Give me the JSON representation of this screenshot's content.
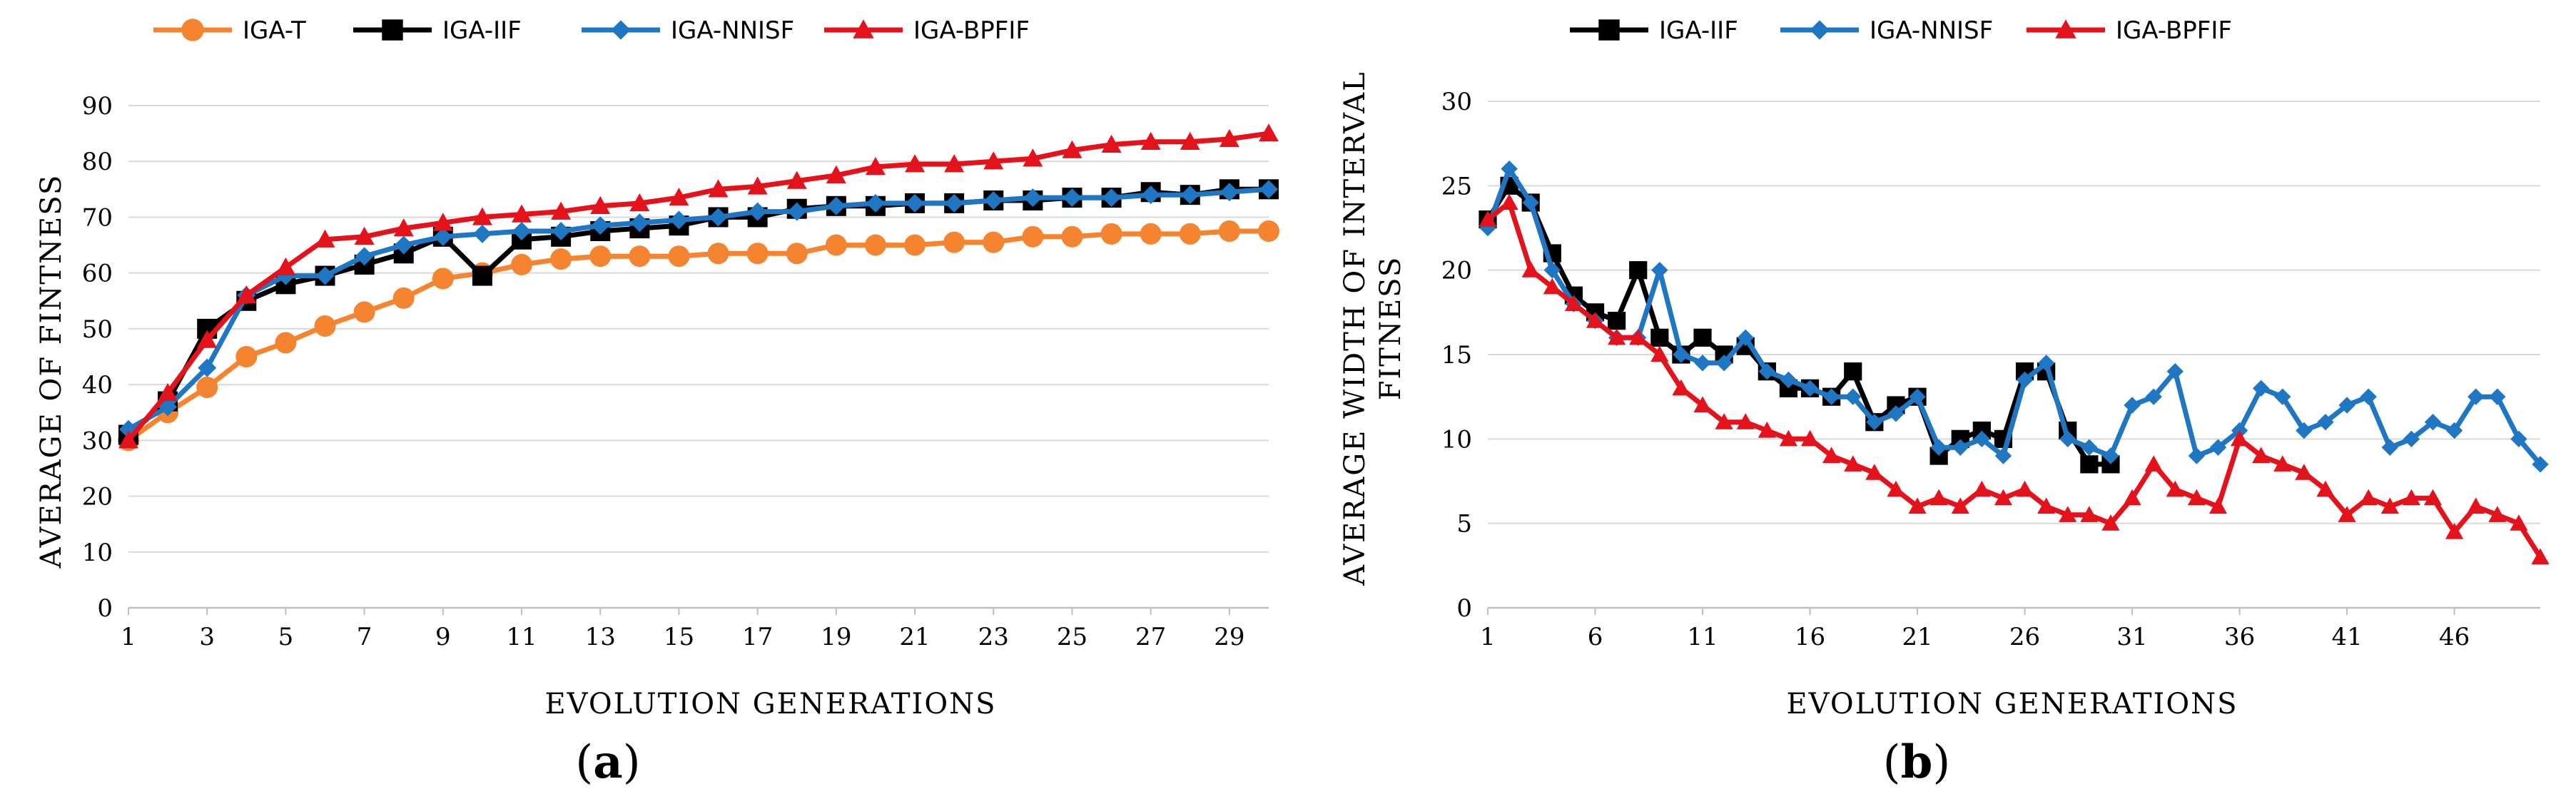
{
  "chart_data": [
    {
      "type": "line",
      "panel_label": "a",
      "xlabel": "EVOLUTION GENERATIONS",
      "ylabel": "AVERAGE OF FINTNESS",
      "ylim": [
        0,
        90
      ],
      "yticks": [
        "0",
        "10",
        "20",
        "30",
        "40",
        "50",
        "60",
        "70",
        "80",
        "90"
      ],
      "xlim": [
        1,
        30
      ],
      "xticks": [
        "1",
        "3",
        "5",
        "7",
        "9",
        "11",
        "13",
        "15",
        "17",
        "19",
        "21",
        "23",
        "25",
        "27",
        "29"
      ],
      "legend_position": "top",
      "series": [
        {
          "name": "IGA-T",
          "color": "#f4842f",
          "marker": "circle",
          "x": [
            1,
            2,
            3,
            4,
            5,
            6,
            7,
            8,
            9,
            10,
            11,
            12,
            13,
            14,
            15,
            16,
            17,
            18,
            19,
            20,
            21,
            22,
            23,
            24,
            25,
            26,
            27,
            28,
            29,
            30
          ],
          "values": [
            30,
            35,
            39.5,
            45,
            47.5,
            50.5,
            53,
            55.5,
            59,
            60,
            61.5,
            62.5,
            63,
            63,
            63,
            63.5,
            63.5,
            63.5,
            65,
            65,
            65,
            65.5,
            65.5,
            66.5,
            66.5,
            67,
            67,
            67,
            67.5,
            67.5
          ]
        },
        {
          "name": "IGA-IIF",
          "color": "#000000",
          "marker": "square",
          "x": [
            1,
            2,
            3,
            4,
            5,
            6,
            7,
            8,
            9,
            10,
            11,
            12,
            13,
            14,
            15,
            16,
            17,
            18,
            19,
            20,
            21,
            22,
            23,
            24,
            25,
            26,
            27,
            28,
            29,
            30
          ],
          "values": [
            31,
            37,
            50,
            55,
            58,
            59.5,
            61.5,
            63.5,
            66.5,
            59.5,
            66,
            66.5,
            67.5,
            68,
            68.5,
            70,
            70,
            71.5,
            72,
            72,
            72.5,
            72.5,
            73,
            73,
            73.5,
            73.5,
            74.5,
            74,
            75,
            75
          ]
        },
        {
          "name": "IGA-NNISF",
          "color": "#1f77c4",
          "marker": "diamond",
          "x": [
            1,
            2,
            3,
            4,
            5,
            6,
            7,
            8,
            9,
            10,
            11,
            12,
            13,
            14,
            15,
            16,
            17,
            18,
            19,
            20,
            21,
            22,
            23,
            24,
            25,
            26,
            27,
            28,
            29,
            30
          ],
          "values": [
            32,
            36,
            43,
            56,
            59.5,
            59.5,
            63,
            65,
            66.5,
            67,
            67.5,
            67.5,
            68.5,
            69,
            69.5,
            70,
            71,
            71,
            72,
            72.5,
            72.5,
            72.5,
            73,
            73.5,
            73.5,
            73.5,
            74,
            74,
            74.5,
            75
          ]
        },
        {
          "name": "IGA-BPFIF",
          "color": "#e3121b",
          "marker": "triangle",
          "x": [
            1,
            2,
            3,
            4,
            5,
            6,
            7,
            8,
            9,
            10,
            11,
            12,
            13,
            14,
            15,
            16,
            17,
            18,
            19,
            20,
            21,
            22,
            23,
            24,
            25,
            26,
            27,
            28,
            29,
            30
          ],
          "values": [
            30,
            38.5,
            48,
            56,
            61,
            66,
            66.5,
            68,
            69,
            70,
            70.5,
            71,
            72,
            72.5,
            73.5,
            75,
            75.5,
            76.5,
            77.5,
            79,
            79.5,
            79.5,
            80,
            80.5,
            82,
            83,
            83.5,
            83.5,
            84,
            85
          ]
        }
      ]
    },
    {
      "type": "line",
      "panel_label": "b",
      "xlabel": "EVOLUTION GENERATIONS",
      "ylabel_line1": "AVERAGE WIDTH OF INTERVAL",
      "ylabel_line2": "FITNESS",
      "ylim": [
        0,
        30
      ],
      "yticks": [
        "0",
        "5",
        "10",
        "15",
        "20",
        "25",
        "30"
      ],
      "xlim": [
        1,
        50
      ],
      "xticks": [
        "1",
        "6",
        "11",
        "16",
        "21",
        "26",
        "31",
        "36",
        "41",
        "46"
      ],
      "legend_position": "top",
      "series": [
        {
          "name": "IGA-IIF",
          "color": "#000000",
          "marker": "square",
          "x": [
            1,
            2,
            3,
            4,
            5,
            6,
            7,
            8,
            9,
            10,
            11,
            12,
            13,
            14,
            15,
            16,
            17,
            18,
            19,
            20,
            21,
            22,
            23,
            24,
            25,
            26,
            27,
            28,
            29,
            30
          ],
          "values": [
            23,
            25,
            24,
            21,
            18.5,
            17.5,
            17,
            20,
            16,
            15,
            16,
            15,
            15.5,
            14,
            13,
            13,
            12.5,
            14,
            11,
            12,
            12.5,
            9,
            10,
            10.5,
            10,
            14,
            14,
            10.5,
            8.5,
            8.5
          ]
        },
        {
          "name": "IGA-NNISF",
          "color": "#1f77c4",
          "marker": "diamond",
          "x": [
            1,
            2,
            3,
            4,
            5,
            6,
            7,
            8,
            9,
            10,
            11,
            12,
            13,
            14,
            15,
            16,
            17,
            18,
            19,
            20,
            21,
            22,
            23,
            24,
            25,
            26,
            27,
            28,
            29,
            30,
            31,
            32,
            33,
            34,
            35,
            36,
            37,
            38,
            39,
            40,
            41,
            42,
            43,
            44,
            45,
            46,
            47,
            48,
            49,
            50
          ],
          "values": [
            22.5,
            26,
            24,
            20,
            18,
            17,
            16,
            16,
            20,
            15,
            14.5,
            14.5,
            16,
            14,
            13.5,
            13,
            12.5,
            12.5,
            11,
            11.5,
            12.5,
            9.5,
            9.5,
            10,
            9,
            13.5,
            14.5,
            10,
            9.5,
            9,
            12,
            12.5,
            14,
            9,
            9.5,
            10.5,
            13,
            12.5,
            10.5,
            11,
            12,
            12.5,
            9.5,
            10,
            11,
            10.5,
            12.5,
            12.5,
            10,
            8.5
          ]
        },
        {
          "name": "IGA-BPFIF",
          "color": "#e3121b",
          "marker": "triangle",
          "x": [
            1,
            2,
            3,
            4,
            5,
            6,
            7,
            8,
            9,
            10,
            11,
            12,
            13,
            14,
            15,
            16,
            17,
            18,
            19,
            20,
            21,
            22,
            23,
            24,
            25,
            26,
            27,
            28,
            29,
            30,
            31,
            32,
            33,
            34,
            35,
            36,
            37,
            38,
            39,
            40,
            41,
            42,
            43,
            44,
            45,
            46,
            47,
            48,
            49,
            50
          ],
          "values": [
            23,
            24,
            20,
            19,
            18,
            17,
            16,
            16,
            15,
            13,
            12,
            11,
            11,
            10.5,
            10,
            10,
            9,
            8.5,
            8,
            7,
            6,
            6.5,
            6,
            7,
            6.5,
            7,
            6,
            5.5,
            5.5,
            5,
            6.5,
            8.5,
            7,
            6.5,
            6,
            10,
            9,
            8.5,
            8,
            7,
            5.5,
            6.5,
            6,
            6.5,
            6.5,
            4.5,
            6,
            5.5,
            5,
            3
          ]
        }
      ]
    }
  ]
}
